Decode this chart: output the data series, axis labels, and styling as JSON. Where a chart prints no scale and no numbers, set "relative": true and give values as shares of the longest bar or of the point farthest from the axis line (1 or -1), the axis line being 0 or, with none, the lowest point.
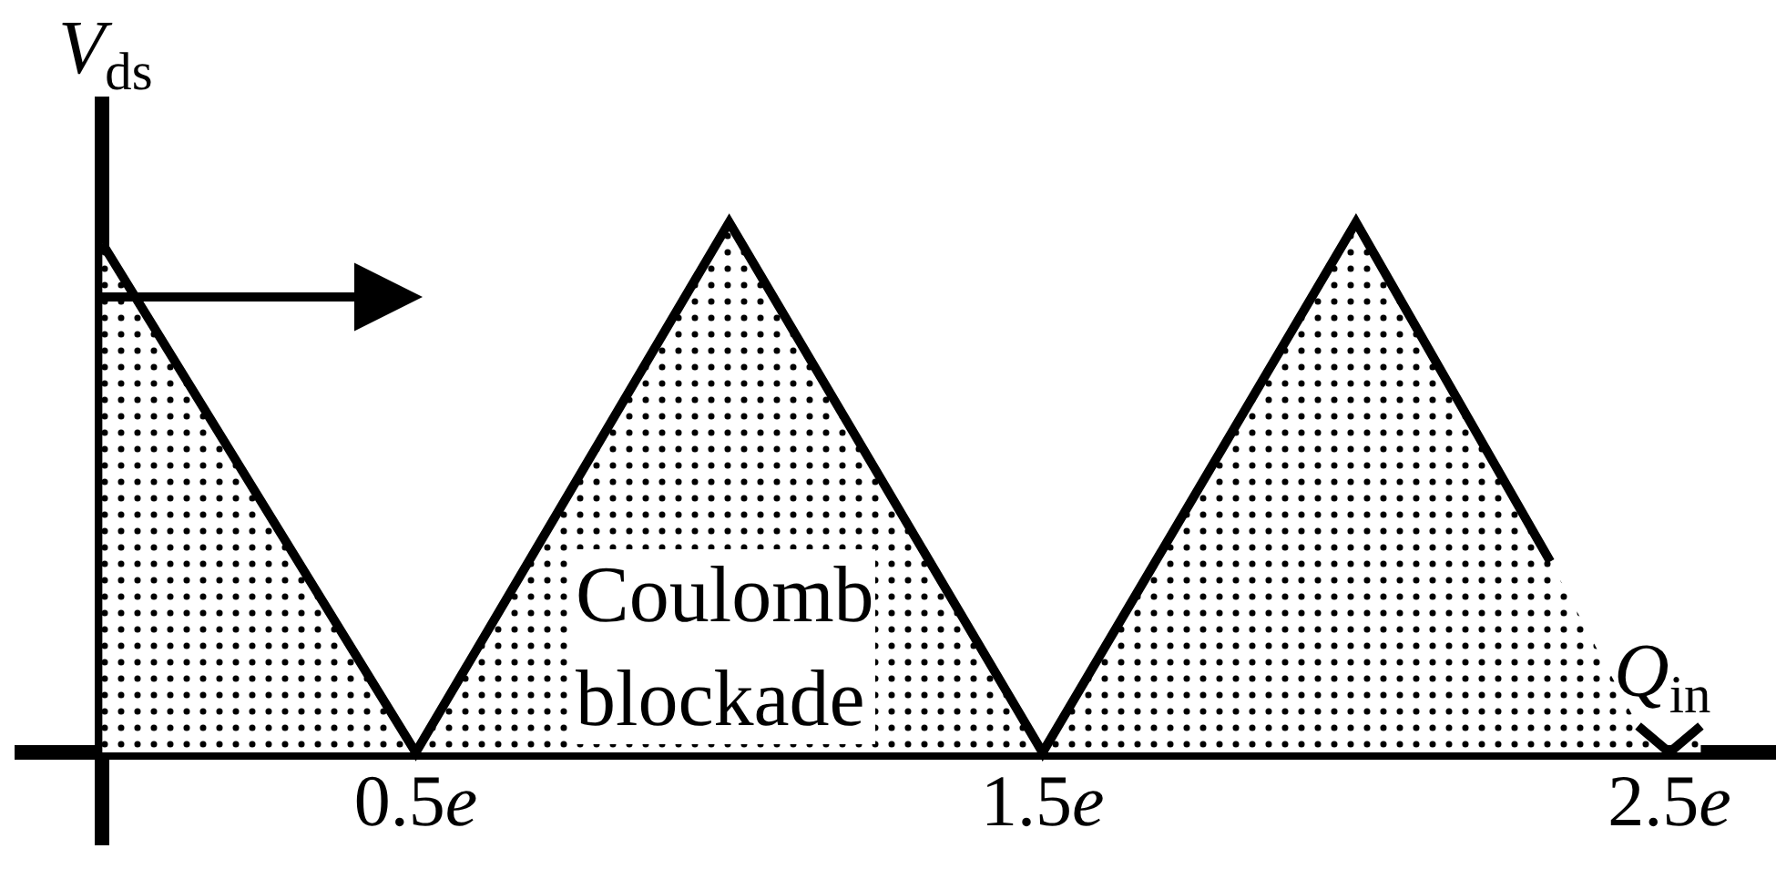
{
  "chart_data": {
    "type": "area",
    "relative": true,
    "xlabel": "Q$_{in}$",
    "ylabel": "V$_{ds}$",
    "x": [
      0,
      0.5,
      1,
      1.5,
      2,
      2.31,
      2.4,
      2.45,
      2.5,
      2.55
    ],
    "series": [
      {
        "color": "#000000",
        "values": [
          0.96,
          0,
          1,
          0,
          1,
          0.36,
          null,
          0.05,
          0,
          0.05
        ]
      }
    ],
    "xlim": [
      -0.14,
      2.67
    ],
    "xticks": [
      {
        "value": 0.5,
        "label": "0.5e"
      },
      {
        "value": 1.5,
        "label": "1.5e"
      },
      {
        "value": 2.5,
        "label": "2.5e"
      }
    ],
    "annotations": [
      "Coulomb\nblockade"
    ],
    "marker": "none"
  }
}
